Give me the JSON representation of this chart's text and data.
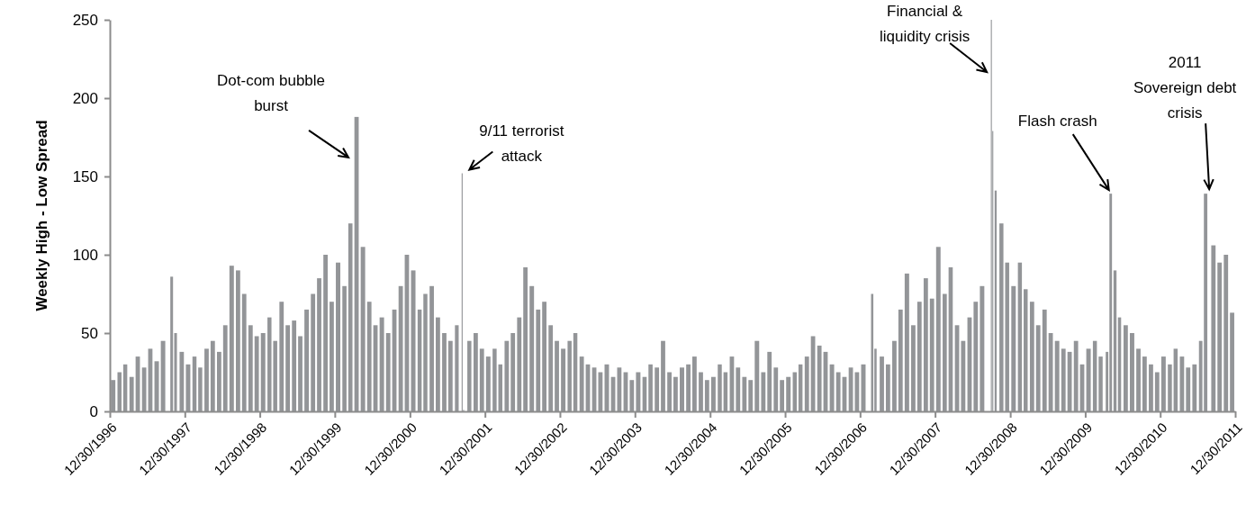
{
  "chart_data": {
    "type": "bar",
    "ylabel": "Weekly High - Low Spread",
    "color": "#939598",
    "x": [
      "1997-01-15",
      "1997-02-15",
      "1997-03-15",
      "1997-04-15",
      "1997-05-15",
      "1997-06-15",
      "1997-07-15",
      "1997-08-15",
      "1997-09-15",
      "1997-10-27",
      "1997-11-15",
      "1997-12-15",
      "1998-01-15",
      "1998-02-15",
      "1998-03-15",
      "1998-04-15",
      "1998-05-15",
      "1998-06-15",
      "1998-07-15",
      "1998-08-15",
      "1998-09-15",
      "1998-10-15",
      "1998-11-15",
      "1998-12-15",
      "1999-01-15",
      "1999-02-15",
      "1999-03-15",
      "1999-04-15",
      "1999-05-15",
      "1999-06-15",
      "1999-07-15",
      "1999-08-15",
      "1999-09-15",
      "1999-10-15",
      "1999-11-15",
      "1999-12-15",
      "2000-01-15",
      "2000-02-15",
      "2000-03-15",
      "2000-04-14",
      "2000-05-15",
      "2000-06-15",
      "2000-07-15",
      "2000-08-15",
      "2000-09-15",
      "2000-10-15",
      "2000-11-15",
      "2000-12-15",
      "2001-01-15",
      "2001-02-15",
      "2001-03-15",
      "2001-04-15",
      "2001-05-15",
      "2001-06-15",
      "2001-07-15",
      "2001-08-15",
      "2001-09-10",
      "2001-09-17",
      "2001-10-15",
      "2001-11-15",
      "2001-12-15",
      "2002-01-15",
      "2002-02-15",
      "2002-03-15",
      "2002-04-15",
      "2002-05-15",
      "2002-06-15",
      "2002-07-15",
      "2002-08-15",
      "2002-09-15",
      "2002-10-15",
      "2002-11-15",
      "2002-12-15",
      "2003-01-15",
      "2003-02-15",
      "2003-03-15",
      "2003-04-15",
      "2003-05-15",
      "2003-06-15",
      "2003-07-15",
      "2003-08-15",
      "2003-09-15",
      "2003-10-15",
      "2003-11-15",
      "2003-12-15",
      "2004-01-15",
      "2004-02-15",
      "2004-03-15",
      "2004-04-15",
      "2004-05-15",
      "2004-06-15",
      "2004-07-15",
      "2004-08-15",
      "2004-09-15",
      "2004-10-15",
      "2004-11-15",
      "2004-12-15",
      "2005-01-15",
      "2005-02-15",
      "2005-03-15",
      "2005-04-15",
      "2005-05-15",
      "2005-06-15",
      "2005-07-15",
      "2005-08-15",
      "2005-09-15",
      "2005-10-15",
      "2005-11-15",
      "2005-12-15",
      "2006-01-15",
      "2006-02-15",
      "2006-03-15",
      "2006-04-15",
      "2006-05-15",
      "2006-06-15",
      "2006-07-15",
      "2006-08-15",
      "2006-09-15",
      "2006-10-15",
      "2006-11-15",
      "2006-12-15",
      "2007-01-15",
      "2007-02-27",
      "2007-03-15",
      "2007-04-15",
      "2007-05-15",
      "2007-06-15",
      "2007-07-15",
      "2007-08-15",
      "2007-09-15",
      "2007-10-15",
      "2007-11-15",
      "2007-12-15",
      "2008-01-15",
      "2008-02-15",
      "2008-03-15",
      "2008-04-15",
      "2008-05-15",
      "2008-06-15",
      "2008-07-15",
      "2008-08-15",
      "2008-09-29",
      "2008-10-06",
      "2008-10-20",
      "2008-11-17",
      "2008-12-15",
      "2009-01-15",
      "2009-02-15",
      "2009-03-15",
      "2009-04-15",
      "2009-05-15",
      "2009-06-15",
      "2009-07-15",
      "2009-08-15",
      "2009-09-15",
      "2009-10-15",
      "2009-11-15",
      "2009-12-15",
      "2010-01-15",
      "2010-02-15",
      "2010-03-15",
      "2010-04-15",
      "2010-05-03",
      "2010-05-24",
      "2010-06-15",
      "2010-07-15",
      "2010-08-15",
      "2010-09-15",
      "2010-10-15",
      "2010-11-15",
      "2010-12-15",
      "2011-01-15",
      "2011-02-15",
      "2011-03-15",
      "2011-04-15",
      "2011-05-15",
      "2011-06-15",
      "2011-07-15",
      "2011-08-08",
      "2011-09-15",
      "2011-10-15",
      "2011-11-15",
      "2011-12-15"
    ],
    "values": [
      20,
      25,
      30,
      22,
      35,
      28,
      40,
      32,
      45,
      86,
      50,
      38,
      30,
      35,
      28,
      40,
      45,
      38,
      55,
      93,
      90,
      75,
      55,
      48,
      50,
      60,
      45,
      70,
      55,
      58,
      48,
      65,
      75,
      85,
      100,
      70,
      95,
      80,
      120,
      188,
      105,
      70,
      55,
      60,
      50,
      65,
      80,
      100,
      90,
      65,
      75,
      80,
      60,
      50,
      45,
      55,
      152,
      1,
      45,
      50,
      40,
      35,
      40,
      30,
      45,
      50,
      60,
      92,
      80,
      65,
      70,
      55,
      45,
      40,
      45,
      50,
      35,
      30,
      28,
      25,
      30,
      22,
      28,
      25,
      20,
      25,
      22,
      30,
      28,
      45,
      25,
      22,
      28,
      30,
      35,
      25,
      20,
      22,
      30,
      25,
      35,
      28,
      22,
      20,
      45,
      25,
      38,
      28,
      20,
      22,
      25,
      30,
      35,
      48,
      42,
      38,
      30,
      25,
      22,
      28,
      25,
      30,
      75,
      40,
      35,
      30,
      45,
      65,
      88,
      55,
      70,
      85,
      72,
      105,
      75,
      92,
      55,
      45,
      60,
      70,
      80,
      250,
      179,
      141,
      120,
      95,
      80,
      95,
      78,
      70,
      55,
      65,
      50,
      45,
      40,
      38,
      45,
      30,
      40,
      45,
      35,
      38,
      139,
      90,
      60,
      55,
      50,
      40,
      35,
      30,
      25,
      35,
      30,
      40,
      35,
      28,
      30,
      45,
      139,
      106,
      95,
      100,
      63
    ],
    "xlim": [
      "1996-12-30",
      "2011-12-30"
    ],
    "xticks": [
      {
        "value": "1996-12-30",
        "label": "12/30/1996"
      },
      {
        "value": "1997-12-30",
        "label": "12/30/1997"
      },
      {
        "value": "1998-12-30",
        "label": "12/30/1998"
      },
      {
        "value": "1999-12-30",
        "label": "12/30/1999"
      },
      {
        "value": "2000-12-30",
        "label": "12/30/2000"
      },
      {
        "value": "2001-12-30",
        "label": "12/30/2001"
      },
      {
        "value": "2002-12-30",
        "label": "12/30/2002"
      },
      {
        "value": "2003-12-30",
        "label": "12/30/2003"
      },
      {
        "value": "2004-12-30",
        "label": "12/30/2004"
      },
      {
        "value": "2005-12-30",
        "label": "12/30/2005"
      },
      {
        "value": "2006-12-30",
        "label": "12/30/2006"
      },
      {
        "value": "2007-12-30",
        "label": "12/30/2007"
      },
      {
        "value": "2008-12-30",
        "label": "12/30/2008"
      },
      {
        "value": "2009-12-30",
        "label": "12/30/2009"
      },
      {
        "value": "2010-12-30",
        "label": "12/30/2010"
      },
      {
        "value": "2011-12-30",
        "label": "12/30/2011"
      }
    ],
    "ylim": [
      0,
      250
    ],
    "yticks": [
      0,
      50,
      100,
      150,
      200,
      250
    ],
    "annotations": [
      {
        "text": "Dot-com bubble\nburst",
        "x": "2000-04-14",
        "y": 188
      },
      {
        "text": "9/11 terrorist\nattack",
        "x": "2001-09-10",
        "y": 152
      },
      {
        "text": "Financial &\nliquidity crisis",
        "x": "2008-09-29",
        "y": 250
      },
      {
        "text": "Flash crash",
        "x": "2010-05-03",
        "y": 139
      },
      {
        "text": "2011\nSovereign debt\ncrisis",
        "x": "2011-08-08",
        "y": 139
      }
    ]
  }
}
